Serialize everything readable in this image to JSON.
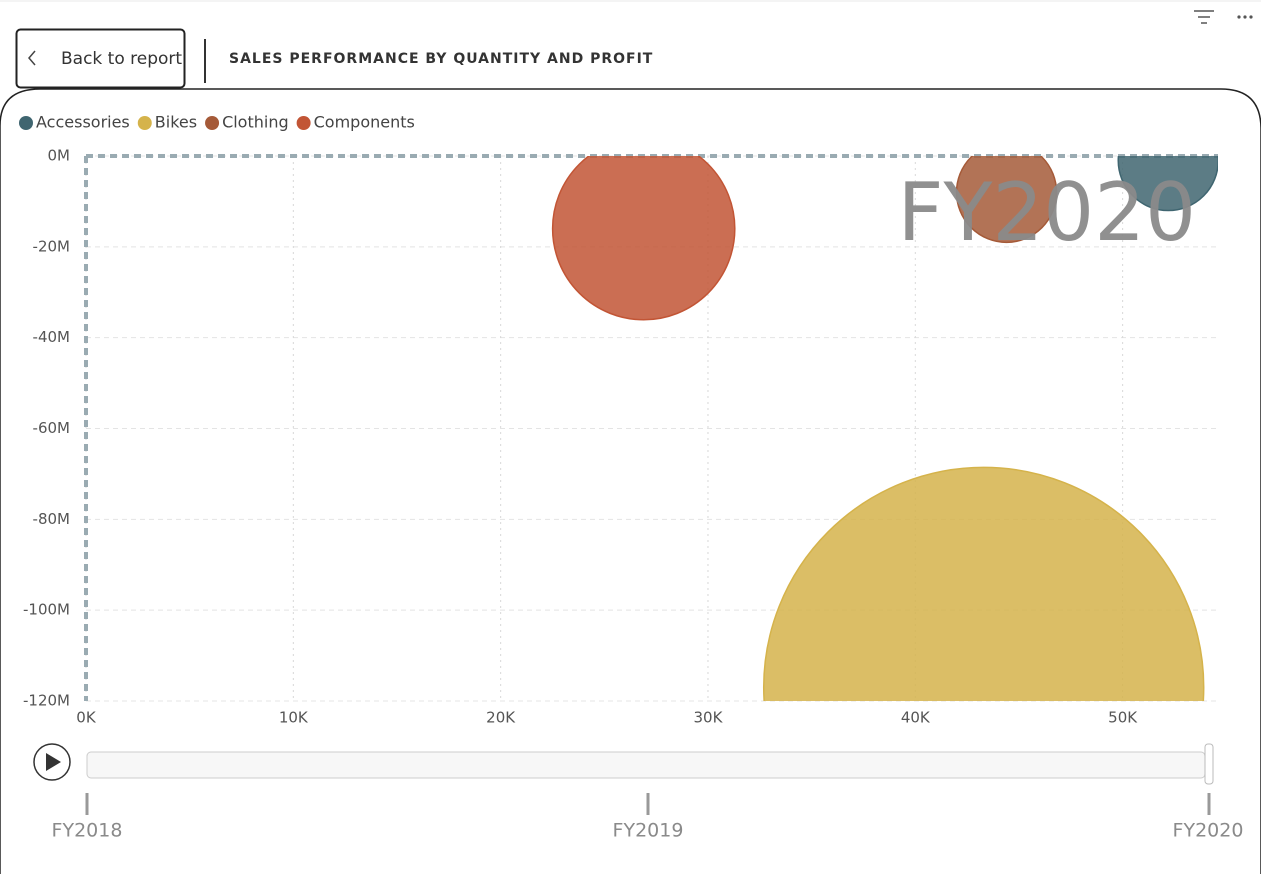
{
  "header": {
    "back_button": "Back to report",
    "title": "SALES PERFORMANCE BY QUANTITY AND PROFIT"
  },
  "chart_data": {
    "type": "scatter",
    "series": [
      {
        "name": "Accessories",
        "color": "#3f6570",
        "x": [
          52200
        ],
        "values": [
          -1000000
        ],
        "sizes": [
          2500
        ]
      },
      {
        "name": "Bikes",
        "color": "#d5b34b",
        "x": [
          43300
        ],
        "values": [
          -117000000
        ],
        "sizes": [
          48400
        ]
      },
      {
        "name": "Clothing",
        "color": "#a55a38",
        "x": [
          44400
        ],
        "values": [
          -8000000
        ],
        "sizes": [
          2500
        ]
      },
      {
        "name": "Components",
        "color": "#c25535",
        "x": [
          26900
        ],
        "values": [
          -16000000
        ],
        "sizes": [
          8300
        ]
      }
    ],
    "xlim": [
      0,
      54600
    ],
    "ylim": [
      -120000000,
      0
    ],
    "xticks": [
      {
        "value": 0,
        "label": "0K"
      },
      {
        "value": 10000,
        "label": "10K"
      },
      {
        "value": 20000,
        "label": "20K"
      },
      {
        "value": 30000,
        "label": "30K"
      },
      {
        "value": 40000,
        "label": "40K"
      },
      {
        "value": 50000,
        "label": "50K"
      }
    ],
    "yticks": [
      {
        "value": 0,
        "label": "0M"
      },
      {
        "value": -20000000,
        "label": "-20M"
      },
      {
        "value": -40000000,
        "label": "-40M"
      },
      {
        "value": -60000000,
        "label": "-60M"
      },
      {
        "value": -80000000,
        "label": "-80M"
      },
      {
        "value": -100000000,
        "label": "-100M"
      },
      {
        "value": -120000000,
        "label": "-120M"
      }
    ],
    "grid": true,
    "legend": "top-left",
    "play_axis": {
      "labels": [
        "FY2018",
        "FY2019",
        "FY2020"
      ],
      "current": "FY2020"
    }
  }
}
